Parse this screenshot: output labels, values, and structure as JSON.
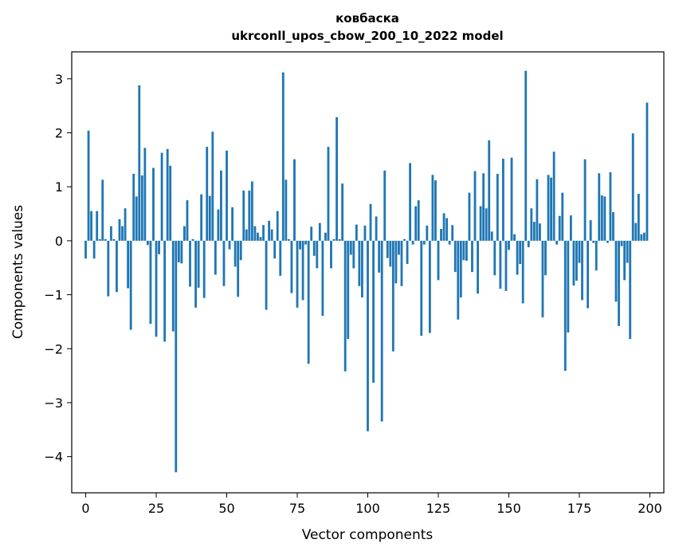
{
  "chart_data": {
    "type": "bar",
    "title": "ковбаска",
    "subtitle": "ukrconll_upos_cbow_200_10_2022 model",
    "xlabel": "Vector components",
    "ylabel": "Components values",
    "xlim": [
      -4.95,
      204.95
    ],
    "ylim": [
      -4.67,
      3.5
    ],
    "xticks": [
      0,
      25,
      50,
      75,
      100,
      125,
      150,
      175,
      200
    ],
    "xtick_labels": [
      "0",
      "25",
      "50",
      "75",
      "100",
      "125",
      "150",
      "175",
      "200"
    ],
    "yticks": [
      -4,
      -3,
      -2,
      -1,
      0,
      1,
      2,
      3
    ],
    "ytick_labels": [
      "−4",
      "−3",
      "−2",
      "−1",
      "0",
      "1",
      "2",
      "3"
    ],
    "grid": false,
    "color": "#1f77b4",
    "x": [
      0,
      1,
      2,
      3,
      4,
      5,
      6,
      7,
      8,
      9,
      10,
      11,
      12,
      13,
      14,
      15,
      16,
      17,
      18,
      19,
      20,
      21,
      22,
      23,
      24,
      25,
      26,
      27,
      28,
      29,
      30,
      31,
      32,
      33,
      34,
      35,
      36,
      37,
      38,
      39,
      40,
      41,
      42,
      43,
      44,
      45,
      46,
      47,
      48,
      49,
      50,
      51,
      52,
      53,
      54,
      55,
      56,
      57,
      58,
      59,
      60,
      61,
      62,
      63,
      64,
      65,
      66,
      67,
      68,
      69,
      70,
      71,
      72,
      73,
      74,
      75,
      76,
      77,
      78,
      79,
      80,
      81,
      82,
      83,
      84,
      85,
      86,
      87,
      88,
      89,
      90,
      91,
      92,
      93,
      94,
      95,
      96,
      97,
      98,
      99,
      100,
      101,
      102,
      103,
      104,
      105,
      106,
      107,
      108,
      109,
      110,
      111,
      112,
      113,
      114,
      115,
      116,
      117,
      118,
      119,
      120,
      121,
      122,
      123,
      124,
      125,
      126,
      127,
      128,
      129,
      130,
      131,
      132,
      133,
      134,
      135,
      136,
      137,
      138,
      139,
      140,
      141,
      142,
      143,
      144,
      145,
      146,
      147,
      148,
      149,
      150,
      151,
      152,
      153,
      154,
      155,
      156,
      157,
      158,
      159,
      160,
      161,
      162,
      163,
      164,
      165,
      166,
      167,
      168,
      169,
      170,
      171,
      172,
      173,
      174,
      175,
      176,
      177,
      178,
      179,
      180,
      181,
      182,
      183,
      184,
      185,
      186,
      187,
      188,
      189,
      190,
      191,
      192,
      193,
      194,
      195,
      196,
      197,
      198,
      199
    ],
    "values": [
      -0.33,
      2.04,
      0.55,
      -0.33,
      0.55,
      0.03,
      1.13,
      0.03,
      -1.03,
      0.27,
      0.03,
      -0.95,
      0.4,
      0.27,
      0.6,
      -0.88,
      -1.65,
      1.24,
      0.82,
      2.88,
      1.21,
      1.72,
      -0.08,
      -1.54,
      1.35,
      -1.78,
      -0.25,
      1.63,
      -1.87,
      1.7,
      1.39,
      -1.68,
      -4.29,
      -0.4,
      -0.42,
      0.27,
      0.75,
      -0.85,
      0.03,
      -1.24,
      -0.87,
      0.86,
      -1.06,
      1.74,
      0.83,
      2.02,
      -0.63,
      0.58,
      1.3,
      -0.84,
      1.67,
      -0.16,
      0.62,
      -0.48,
      -1.04,
      -0.36,
      0.93,
      0.21,
      0.93,
      1.1,
      0.27,
      0.15,
      0.07,
      0.29,
      -1.28,
      0.37,
      0.21,
      -0.33,
      0.55,
      -0.65,
      3.12,
      1.13,
      0.03,
      -0.97,
      1.51,
      -1.24,
      -0.16,
      -1.1,
      -0.07,
      -2.28,
      0.26,
      -0.28,
      -0.51,
      0.33,
      -1.39,
      0.15,
      1.74,
      -0.51,
      0.03,
      2.29,
      0.03,
      1.06,
      -2.42,
      -1.82,
      -0.26,
      -0.51,
      0.3,
      -0.84,
      -1.05,
      0.28,
      -3.53,
      0.68,
      -2.63,
      0.45,
      -0.59,
      -3.35,
      1.3,
      -0.32,
      -0.48,
      -2.05,
      -0.79,
      -0.26,
      -0.84,
      0.03,
      -0.43,
      1.44,
      -0.07,
      0.64,
      0.75,
      -1.76,
      -0.07,
      0.28,
      -1.71,
      1.22,
      1.12,
      -0.73,
      0.22,
      0.51,
      0.42,
      -0.07,
      0.29,
      -0.58,
      -1.46,
      -1.05,
      -0.36,
      -0.37,
      0.89,
      -0.58,
      1.29,
      -0.98,
      0.64,
      1.25,
      0.6,
      1.86,
      0.17,
      -0.64,
      1.24,
      -0.89,
      1.52,
      -0.93,
      -0.17,
      1.54,
      0.12,
      -0.63,
      -0.43,
      -1.16,
      3.15,
      -0.12,
      0.6,
      0.35,
      1.14,
      0.32,
      -1.42,
      -0.64,
      1.22,
      1.17,
      1.65,
      -0.07,
      0.46,
      0.89,
      -2.41,
      -1.7,
      0.47,
      -0.83,
      -0.74,
      -0.41,
      -1.1,
      1.51,
      -1.25,
      0.38,
      -0.04,
      -0.55,
      1.25,
      0.84,
      0.82,
      -0.04,
      1.27,
      0.53,
      -1.13,
      -1.58,
      -0.1,
      -0.73,
      -0.41,
      -1.82,
      1.99,
      0.33,
      0.87,
      0.12,
      0.15,
      2.56
    ]
  }
}
